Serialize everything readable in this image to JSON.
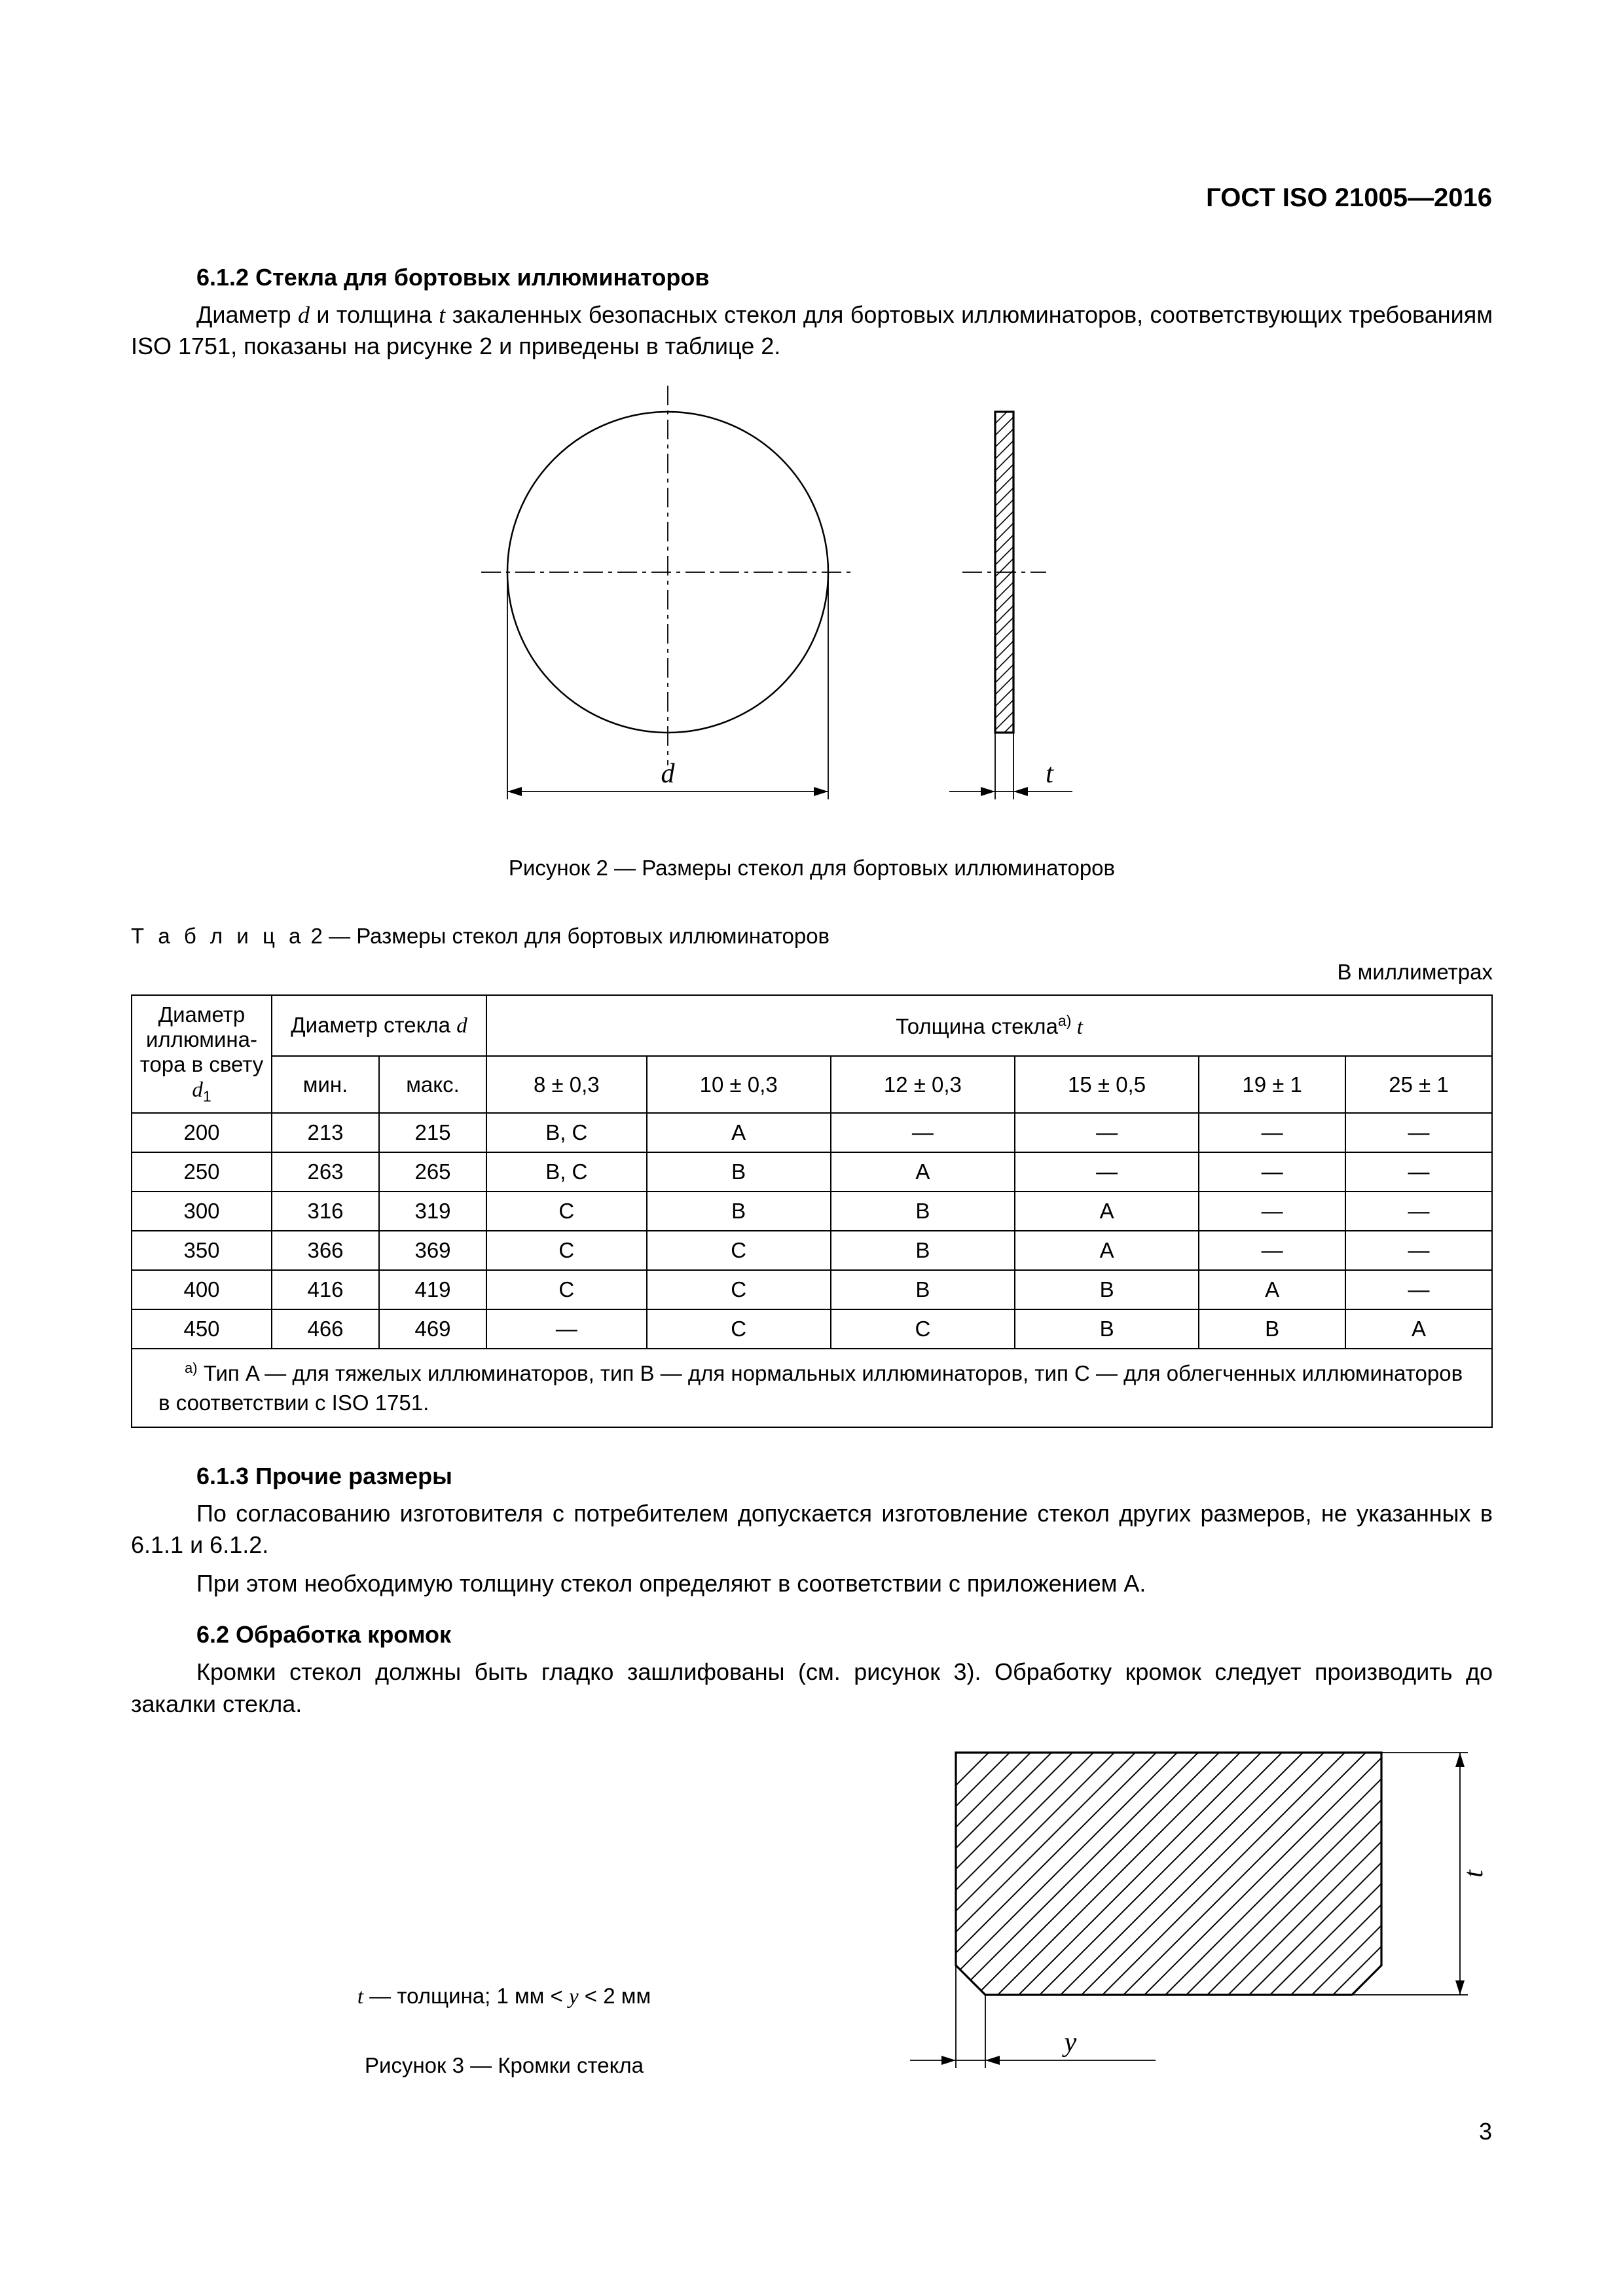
{
  "doc_id": "ГОСТ ISO 21005—2016",
  "page_number": "3",
  "h_612": "6.1.2  Стекла для бортовых иллюминаторов",
  "p_612_1_a": "Диаметр ",
  "p_612_1_d": "d",
  "p_612_1_b": " и толщина ",
  "p_612_1_t": "t",
  "p_612_1_c": " закаленных безопасных стекол для бортовых иллюминаторов, соответствующих требованиям ISO 1751, показаны на рисунке 2 и приведены в таблице 2.",
  "fig2": {
    "d_label": "d",
    "t_label": "t",
    "caption": "Рисунок 2 — Размеры стекол для бортовых иллюминаторов"
  },
  "table2": {
    "title_prefix": "Т а б л и ц а",
    "title_rest": "  2 — Размеры стекол для бортовых иллюминаторов",
    "units": "В миллиметрах",
    "head": {
      "col1_a": "Диаметр иллюмина­тора в свету",
      "col1_d": "d",
      "col1_sub": "1",
      "group_d_a": "Диаметр стекла ",
      "group_d_d": "d",
      "group_t_a": "Толщина стекла",
      "group_t_sup": "a)",
      "group_t_t": " t",
      "min": "мин.",
      "max": "макс.",
      "t1": "8 ± 0,3",
      "t2": "10 ± 0,3",
      "t3": "12 ± 0,3",
      "t4": "15 ± 0,5",
      "t5": "19 ± 1",
      "t6": "25 ± 1"
    },
    "rows": [
      [
        "200",
        "213",
        "215",
        "B, C",
        "A",
        "—",
        "—",
        "—",
        "—"
      ],
      [
        "250",
        "263",
        "265",
        "B, C",
        "B",
        "A",
        "—",
        "—",
        "—"
      ],
      [
        "300",
        "316",
        "319",
        "C",
        "B",
        "B",
        "A",
        "—",
        "—"
      ],
      [
        "350",
        "366",
        "369",
        "C",
        "C",
        "B",
        "A",
        "—",
        "—"
      ],
      [
        "400",
        "416",
        "419",
        "C",
        "C",
        "B",
        "B",
        "A",
        "—"
      ],
      [
        "450",
        "466",
        "469",
        "—",
        "C",
        "C",
        "B",
        "B",
        "A"
      ]
    ],
    "footnote_sup": "a)",
    "footnote": " Тип A — для тяжелых иллюминаторов, тип B — для нормальных иллюминаторов, тип C — для облегченных иллюминаторов в соответствии с ISO 1751."
  },
  "h_613": "6.1.3  Прочие размеры",
  "p_613_1": "По согласованию изготовителя с потребителем допускается изготовление стекол других размеров, не указанных в 6.1.1 и 6.1.2.",
  "p_613_2": "При этом необходимую толщину стекол определяют в соответствии с приложением А.",
  "h_62": "6.2  Обработка кромок",
  "p_62_1": "Кромки стекол должны быть гладко зашлифованы (см. рисунок 3). Обработку кромок следует производить до закалки стекла.",
  "fig3": {
    "legend_a": "t",
    "legend_b": " — толщина; 1 мм < ",
    "legend_c": "y",
    "legend_d": " < 2 мм",
    "caption": "Рисунок 3 — Кромки стекла",
    "t_label": "t",
    "y_label": "y"
  },
  "svg": {
    "stroke": "#000000",
    "thin": 2.5,
    "thick": 3.2,
    "hatch_gap": 18,
    "dash_long": "30 8 6 8",
    "fontsize_dim": 42
  }
}
